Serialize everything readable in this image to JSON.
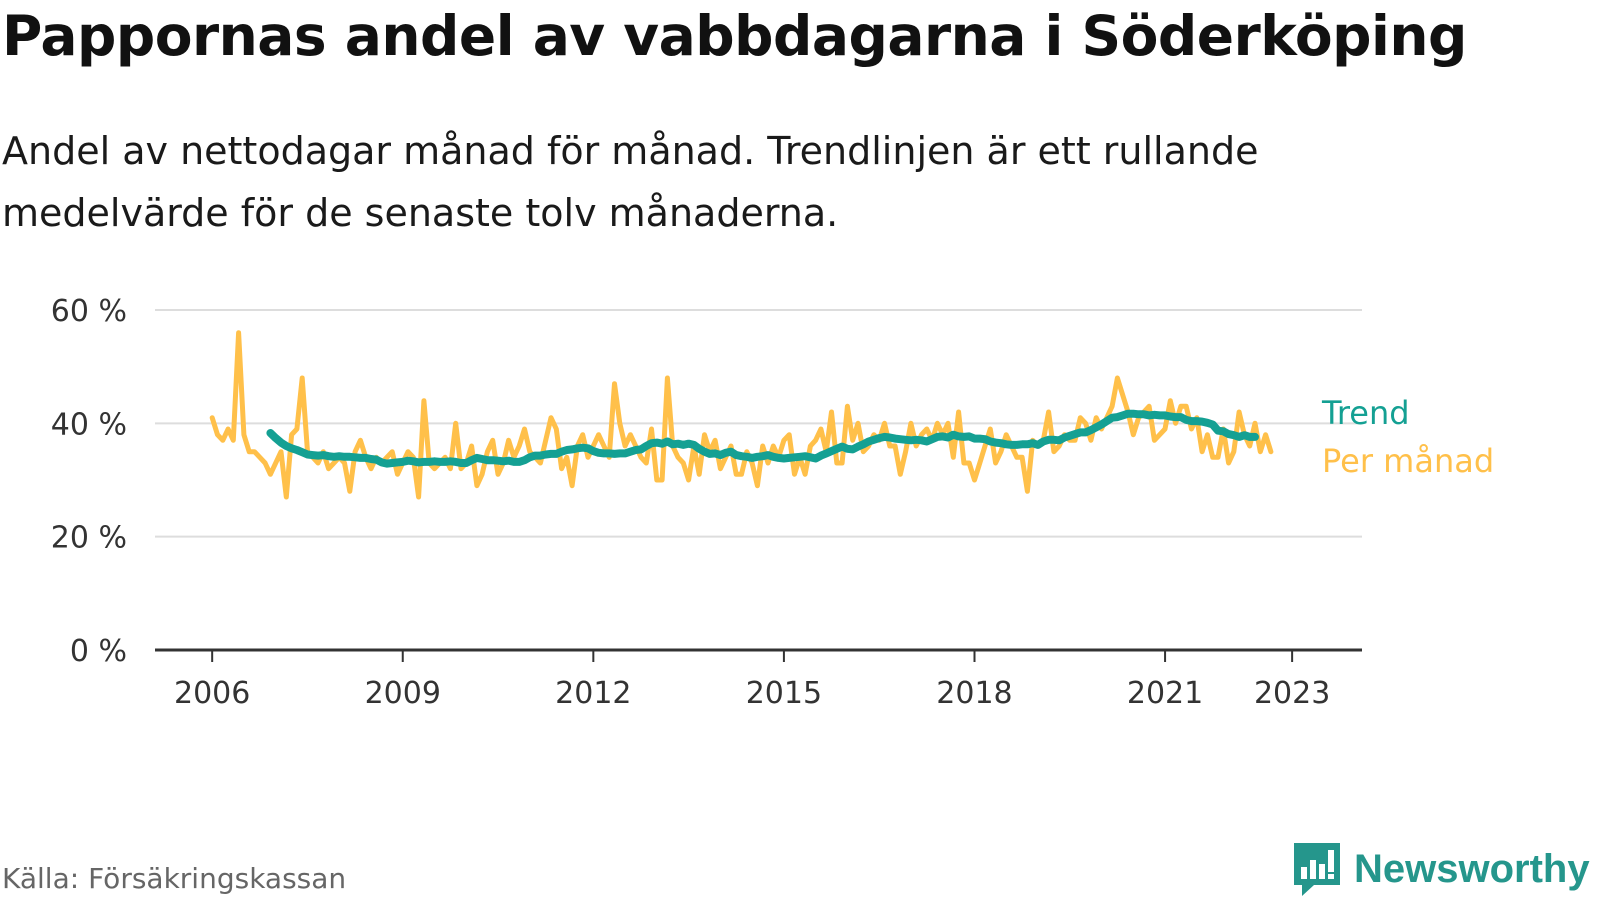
{
  "title": "Pappornas andel av vabbdagarna i Söderköping",
  "subtitle": "Andel av nettodagar månad för månad. Trendlinjen är ett rullande medelvärde för de senaste tolv månaderna.",
  "source": "Källa: Försäkringskassan",
  "brand": {
    "name": "Newsworthy",
    "icon": "newsworthy-logo-icon"
  },
  "colors": {
    "monthly": "#FFC04A",
    "trend": "#14A093",
    "grid": "#DDDDDD",
    "axis": "#333333",
    "brand": "#25968C"
  },
  "chart_data": {
    "type": "line",
    "x_unit": "year (decimal)",
    "xlim": [
      2005.1,
      2024.1
    ],
    "ylim": [
      0,
      60
    ],
    "y_ticks": [
      0,
      20,
      40,
      60
    ],
    "y_tick_labels": [
      "0 %",
      "20 %",
      "40 %",
      "60 %"
    ],
    "x_ticks": [
      2006,
      2009,
      2012,
      2015,
      2018,
      2021,
      2023
    ],
    "x_tick_labels": [
      "2006",
      "2009",
      "2012",
      "2015",
      "2018",
      "2021",
      "2023"
    ],
    "grid": true,
    "legend": "right, at line ends",
    "series": [
      {
        "name": "Per månad",
        "color": "#FFC04A",
        "x_start": 2006.0,
        "x_step": 0.08333,
        "values": [
          41,
          38,
          37,
          39,
          37,
          56,
          38,
          35,
          35,
          34,
          33,
          31,
          33,
          35,
          27,
          38,
          39,
          48,
          35,
          34,
          33,
          35,
          32,
          33,
          34,
          33,
          28,
          35,
          37,
          34,
          32,
          34,
          33,
          34,
          35,
          31,
          33,
          35,
          34,
          27,
          44,
          33,
          32,
          33,
          34,
          32,
          40,
          32,
          33,
          36,
          29,
          31,
          35,
          37,
          31,
          33,
          37,
          34,
          36,
          39,
          35,
          34,
          33,
          37,
          41,
          39,
          32,
          34,
          29,
          36,
          38,
          34,
          36,
          38,
          36,
          34,
          47,
          40,
          36,
          38,
          36,
          34,
          33,
          39,
          30,
          30,
          48,
          36,
          34,
          33,
          30,
          36,
          31,
          38,
          35,
          37,
          32,
          34,
          36,
          31,
          31,
          35,
          33,
          29,
          36,
          33,
          36,
          34,
          37,
          38,
          31,
          34,
          31,
          36,
          37,
          39,
          35,
          42,
          33,
          33,
          43,
          37,
          40,
          35,
          36,
          38,
          37,
          40,
          36,
          36,
          31,
          35,
          40,
          36,
          38,
          39,
          37,
          40,
          38,
          40,
          34,
          42,
          33,
          33,
          30,
          33,
          36,
          39,
          33,
          35,
          38,
          36,
          34,
          34,
          28,
          37,
          36,
          37,
          42,
          35,
          36,
          38,
          37,
          37,
          41,
          40,
          37,
          41,
          39,
          41,
          43,
          48,
          45,
          42,
          38,
          41,
          42,
          43,
          37,
          38,
          39,
          44,
          40,
          43,
          43,
          39,
          41,
          35,
          38,
          34,
          34,
          39,
          33,
          35,
          42,
          38,
          36,
          40,
          35,
          38,
          35
        ]
      },
      {
        "name": "Trend",
        "color": "#14A093",
        "x_start": 2006.917,
        "x_step": 0.08333,
        "values": [
          38.3,
          37.4,
          36.6,
          36.0,
          35.6,
          35.3,
          34.9,
          34.5,
          34.4,
          34.3,
          34.4,
          34.2,
          34.1,
          34.2,
          34.1,
          34.1,
          34.0,
          33.9,
          33.9,
          33.7,
          33.6,
          33.1,
          32.9,
          33.0,
          33.1,
          33.2,
          33.4,
          33.3,
          33.1,
          33.2,
          33.2,
          33.3,
          33.2,
          33.2,
          33.3,
          33.2,
          33.0,
          33.0,
          33.5,
          33.9,
          33.7,
          33.5,
          33.5,
          33.4,
          33.3,
          33.4,
          33.2,
          33.2,
          33.5,
          34.0,
          34.3,
          34.3,
          34.5,
          34.6,
          34.6,
          35.0,
          35.3,
          35.4,
          35.6,
          35.7,
          35.6,
          35.1,
          34.8,
          34.7,
          34.7,
          34.6,
          34.7,
          34.7,
          35.0,
          35.3,
          35.4,
          36.0,
          36.5,
          36.6,
          36.4,
          36.8,
          36.3,
          36.4,
          36.2,
          36.4,
          36.2,
          35.5,
          35.0,
          34.6,
          34.7,
          34.4,
          34.8,
          35.0,
          34.4,
          34.2,
          34.1,
          33.9,
          34.1,
          34.2,
          34.4,
          34.1,
          33.9,
          33.8,
          33.9,
          34.0,
          34.1,
          34.2,
          34.0,
          33.8,
          34.3,
          34.7,
          35.1,
          35.5,
          35.9,
          35.5,
          35.4,
          35.9,
          36.3,
          36.8,
          37.1,
          37.4,
          37.6,
          37.5,
          37.3,
          37.2,
          37.1,
          37.0,
          37.1,
          37.0,
          36.8,
          37.2,
          37.6,
          37.7,
          37.5,
          38.0,
          37.7,
          37.6,
          37.7,
          37.3,
          37.3,
          37.2,
          36.8,
          36.6,
          36.5,
          36.3,
          36.2,
          36.2,
          36.3,
          36.3,
          36.5,
          36.2,
          36.8,
          37.1,
          37.1,
          37.0,
          37.5,
          37.8,
          38.1,
          38.4,
          38.4,
          38.8,
          39.3,
          39.8,
          40.4,
          41.0,
          41.1,
          41.4,
          41.7,
          41.7,
          41.6,
          41.6,
          41.4,
          41.5,
          41.4,
          41.4,
          41.2,
          41.1,
          41.1,
          40.6,
          40.4,
          40.4,
          40.3,
          40.1,
          39.8,
          38.7,
          38.6,
          38.1,
          37.9,
          37.6,
          37.9,
          37.6,
          37.6
        ]
      }
    ]
  }
}
